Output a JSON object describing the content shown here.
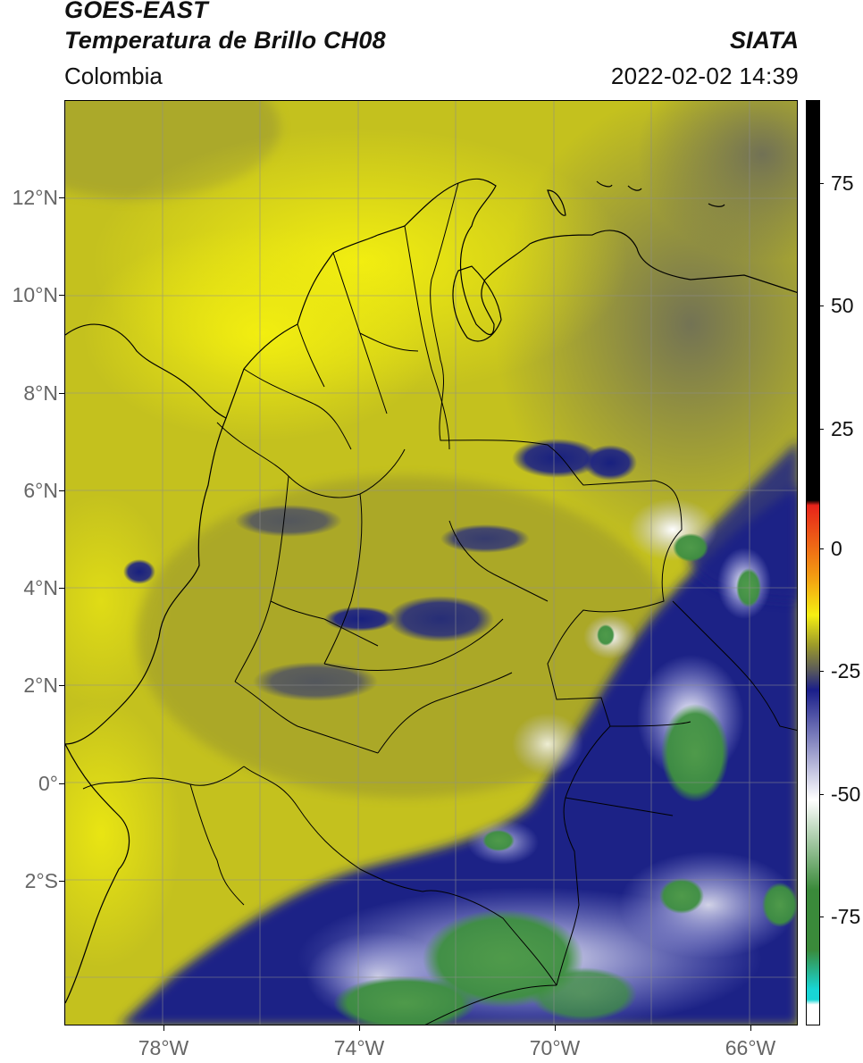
{
  "header": {
    "satellite": "GOES-EAST",
    "product": "Temperatura de Brillo CH08",
    "organization": "SIATA",
    "region": "Colombia",
    "datetime": "2022-02-02 14:39"
  },
  "map": {
    "lon_range": [
      -80,
      -65
    ],
    "lat_range": [
      -5,
      14
    ],
    "lat_labels": [
      "12°N",
      "10°N",
      "8°N",
      "6°N",
      "4°N",
      "2°N",
      "0°",
      "2°S"
    ],
    "lon_labels": [
      "78°W",
      "74°W",
      "70°W",
      "66°W"
    ],
    "background_color": "#c8c41c",
    "gridlines": true
  },
  "colorbar": {
    "labels": [
      "75",
      "50",
      "25",
      "0",
      "-25",
      "-50",
      "-75"
    ],
    "value_range": [
      -95,
      90
    ],
    "colors": {
      "warm_black": "#000000",
      "red": "#e8231a",
      "orange": "#f39a12",
      "yellow": "#f5ee12",
      "olive": "#9c9a2a",
      "gray": "#5a5a5a",
      "navy": "#1a1e8a",
      "white": "#ffffff",
      "green": "#3a8a3a",
      "cyan": "#18d6d6"
    }
  }
}
